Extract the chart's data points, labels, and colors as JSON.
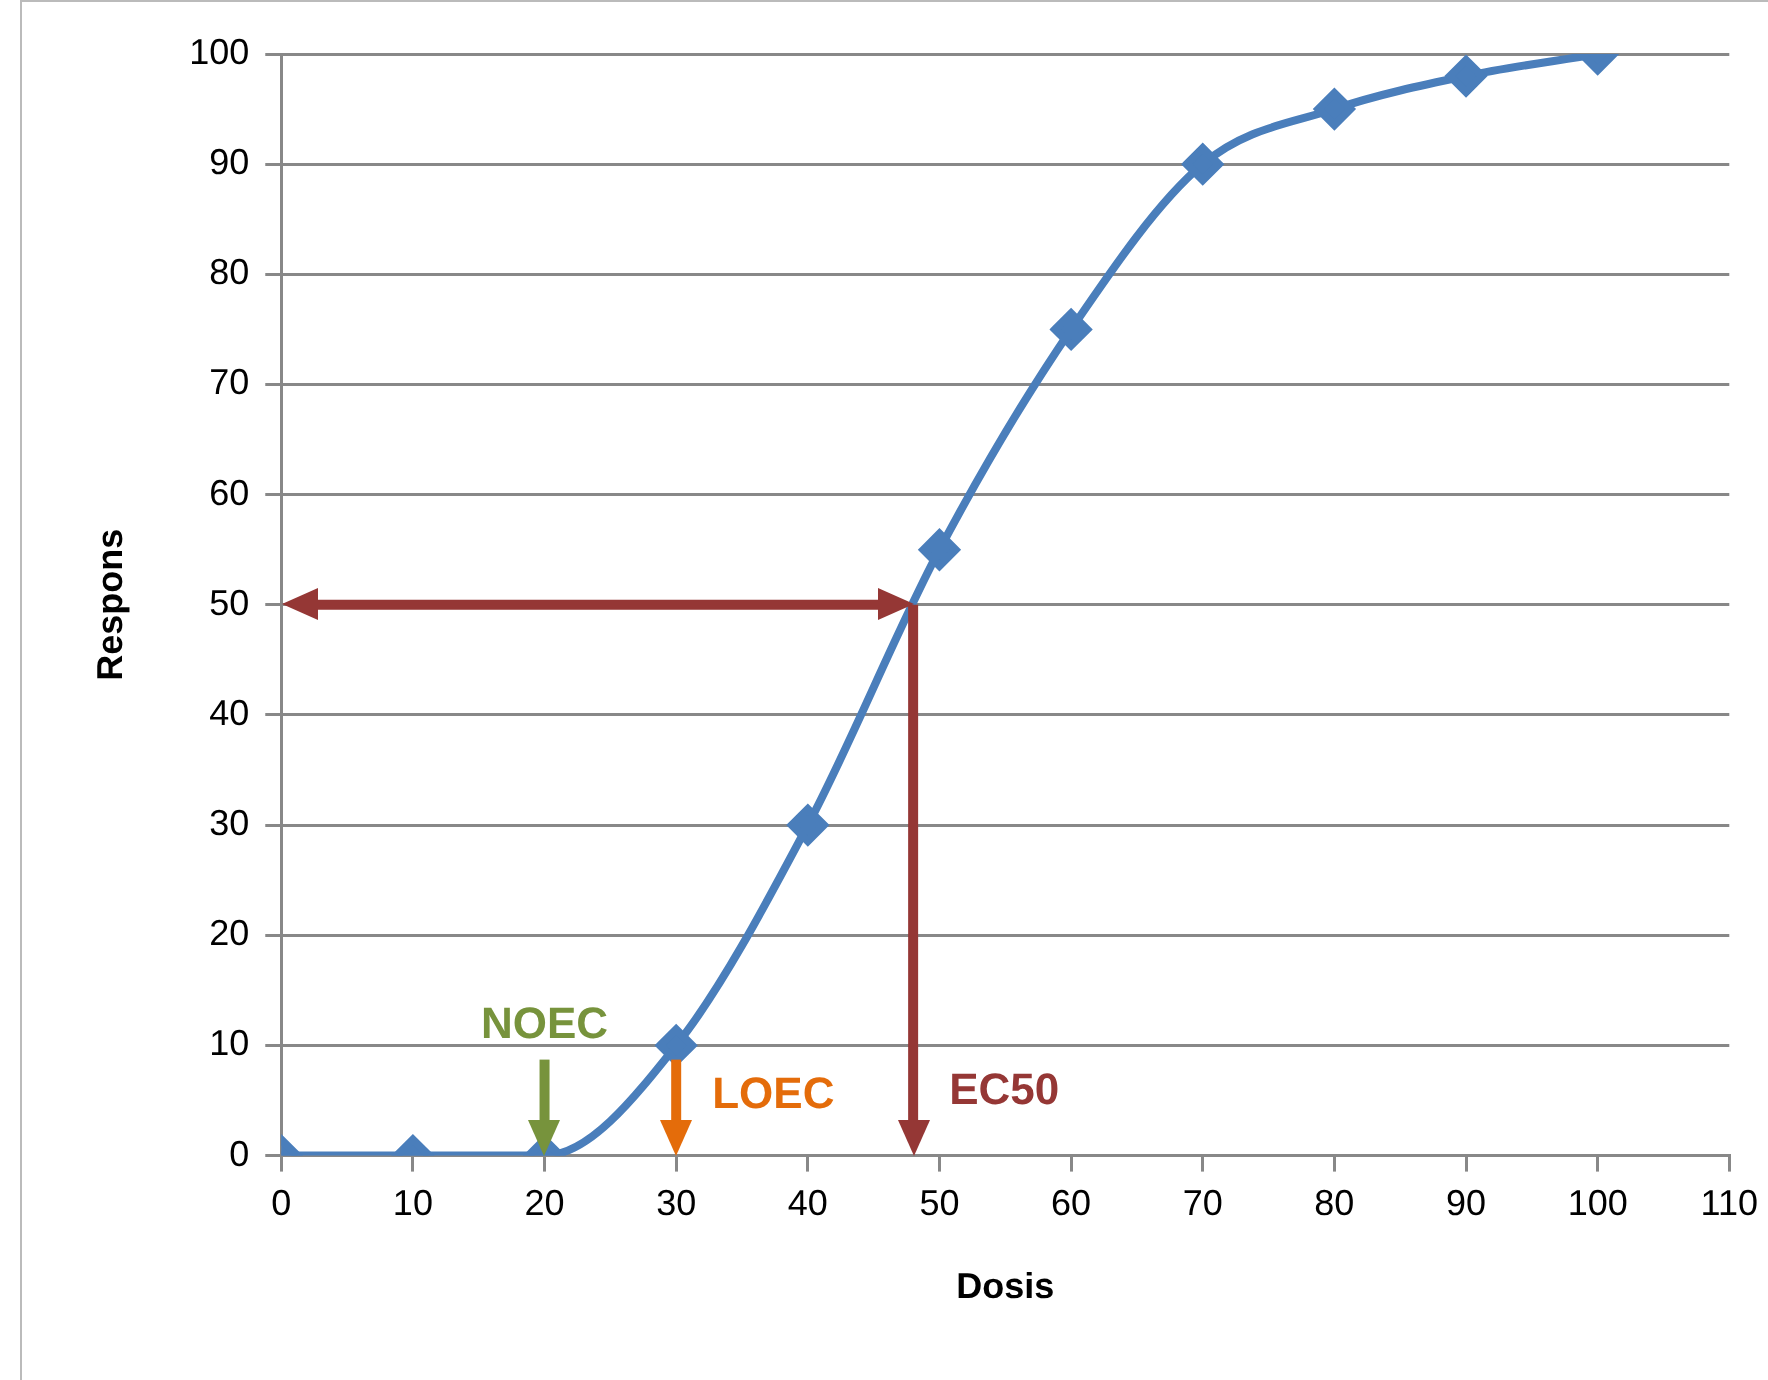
{
  "chart_data": {
    "type": "line",
    "xlabel": "Dosis",
    "ylabel": "Respons",
    "x": [
      0,
      10,
      20,
      30,
      40,
      50,
      60,
      70,
      80,
      90,
      100
    ],
    "series": [
      {
        "color": "#4a7ebb",
        "values": [
          0,
          0,
          0,
          10,
          30,
          55,
          75,
          90,
          95,
          98,
          100
        ]
      }
    ],
    "xlim": [
      0,
      110
    ],
    "xticks": [
      0,
      10,
      20,
      30,
      40,
      50,
      60,
      70,
      80,
      90,
      100,
      110
    ],
    "ylim": [
      0,
      100
    ],
    "yticks": [
      0,
      10,
      20,
      30,
      40,
      50,
      60,
      70,
      80,
      90,
      100
    ],
    "grid": "y",
    "legend": false,
    "marker": "diamond",
    "line_style": "solid",
    "ref_lines": [
      {
        "axis": "x",
        "value": 20,
        "label": "NOEC",
        "color": "#77933c"
      },
      {
        "axis": "x",
        "value": 30,
        "label": "LOEC",
        "color": "#e46c0a"
      },
      {
        "axis": "x",
        "value": 48,
        "label": "EC50",
        "color": "#953735"
      },
      {
        "axis": "y",
        "value": 50,
        "color": "#953735"
      }
    ]
  }
}
